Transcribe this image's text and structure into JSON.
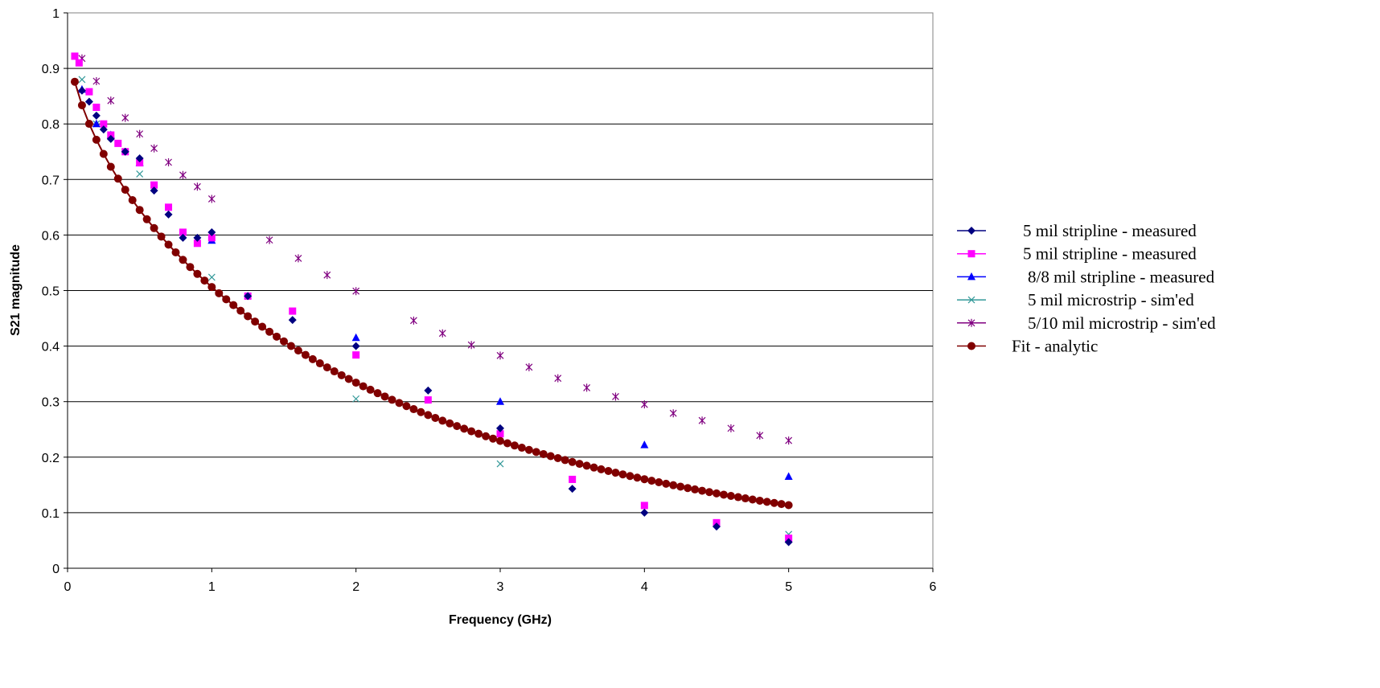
{
  "chart_data": {
    "type": "scatter",
    "title": "",
    "xlabel": "Frequency (GHz)",
    "ylabel": "S21 magnitude",
    "xlim": [
      0,
      6
    ],
    "ylim": [
      0,
      1
    ],
    "x_ticks": [
      "0",
      "1",
      "2",
      "3",
      "4",
      "5",
      "6"
    ],
    "y_ticks": [
      "0",
      "0.1",
      "0.2",
      "0.3",
      "0.4",
      "0.5",
      "0.6",
      "0.7",
      "0.8",
      "0.9",
      "1"
    ],
    "grid": "horizontal major gridlines",
    "legend_position": "right",
    "series": [
      {
        "name": "5 mil stripline - measured",
        "marker": "diamond",
        "color": "#000080",
        "x": [
          0.1,
          0.15,
          0.2,
          0.25,
          0.3,
          0.4,
          0.5,
          0.6,
          0.7,
          0.8,
          0.9,
          1.0,
          1.25,
          1.56,
          2.0,
          2.5,
          3.0,
          3.5,
          4.0,
          4.5,
          5.0
        ],
        "y": [
          0.86,
          0.84,
          0.815,
          0.79,
          0.773,
          0.75,
          0.738,
          0.68,
          0.637,
          0.595,
          0.595,
          0.605,
          0.49,
          0.447,
          0.4,
          0.32,
          0.252,
          0.143,
          0.1,
          0.075,
          0.047
        ]
      },
      {
        "name": "5 mil stripline - measured",
        "marker": "square",
        "color": "#ff00ff",
        "x": [
          0.05,
          0.08,
          0.15,
          0.2,
          0.25,
          0.3,
          0.35,
          0.4,
          0.5,
          0.6,
          0.7,
          0.8,
          0.9,
          1.0,
          1.25,
          1.56,
          2.0,
          2.5,
          3.0,
          3.5,
          4.0,
          4.5,
          5.0
        ],
        "y": [
          0.922,
          0.91,
          0.858,
          0.83,
          0.8,
          0.78,
          0.765,
          0.75,
          0.73,
          0.69,
          0.65,
          0.605,
          0.585,
          0.595,
          0.49,
          0.463,
          0.384,
          0.303,
          0.242,
          0.16,
          0.113,
          0.082,
          0.054
        ]
      },
      {
        "name": "8/8 mil stripline - measured",
        "marker": "triangle",
        "color": "#0000ff",
        "x": [
          0.1,
          0.2,
          0.3,
          0.5,
          1.0,
          2.0,
          3.0,
          4.0,
          5.0
        ],
        "y": [
          0.862,
          0.8,
          0.78,
          0.73,
          0.59,
          0.415,
          0.3,
          0.222,
          0.165
        ]
      },
      {
        "name": "5 mil microstrip - sim'ed",
        "marker": "x",
        "color": "#339999",
        "x": [
          0.1,
          0.2,
          0.5,
          1.0,
          2.0,
          3.0,
          5.0
        ],
        "y": [
          0.88,
          0.8,
          0.71,
          0.524,
          0.305,
          0.188,
          0.061
        ]
      },
      {
        "name": "5/10 mil microstrip - sim'ed",
        "marker": "star",
        "color": "#800080",
        "x": [
          0.1,
          0.2,
          0.3,
          0.4,
          0.5,
          0.6,
          0.7,
          0.8,
          0.9,
          1.0,
          1.4,
          1.6,
          1.8,
          2.0,
          2.4,
          2.6,
          2.8,
          3.0,
          3.2,
          3.4,
          3.6,
          3.8,
          4.0,
          4.2,
          4.4,
          4.6,
          4.8,
          5.0
        ],
        "y": [
          0.918,
          0.877,
          0.842,
          0.811,
          0.782,
          0.756,
          0.731,
          0.708,
          0.687,
          0.665,
          0.591,
          0.558,
          0.528,
          0.499,
          0.446,
          0.423,
          0.402,
          0.383,
          0.362,
          0.342,
          0.325,
          0.309,
          0.295,
          0.279,
          0.266,
          0.252,
          0.239,
          0.23
        ]
      },
      {
        "name": "Fit - analytic",
        "marker": "circle-line",
        "color": "#800000",
        "model": "y = 0.97*exp(-0.4*sqrt(f)-0.25*f)",
        "x_start": 0.05,
        "x_end": 5.0,
        "x_step": 0.05
      }
    ]
  }
}
